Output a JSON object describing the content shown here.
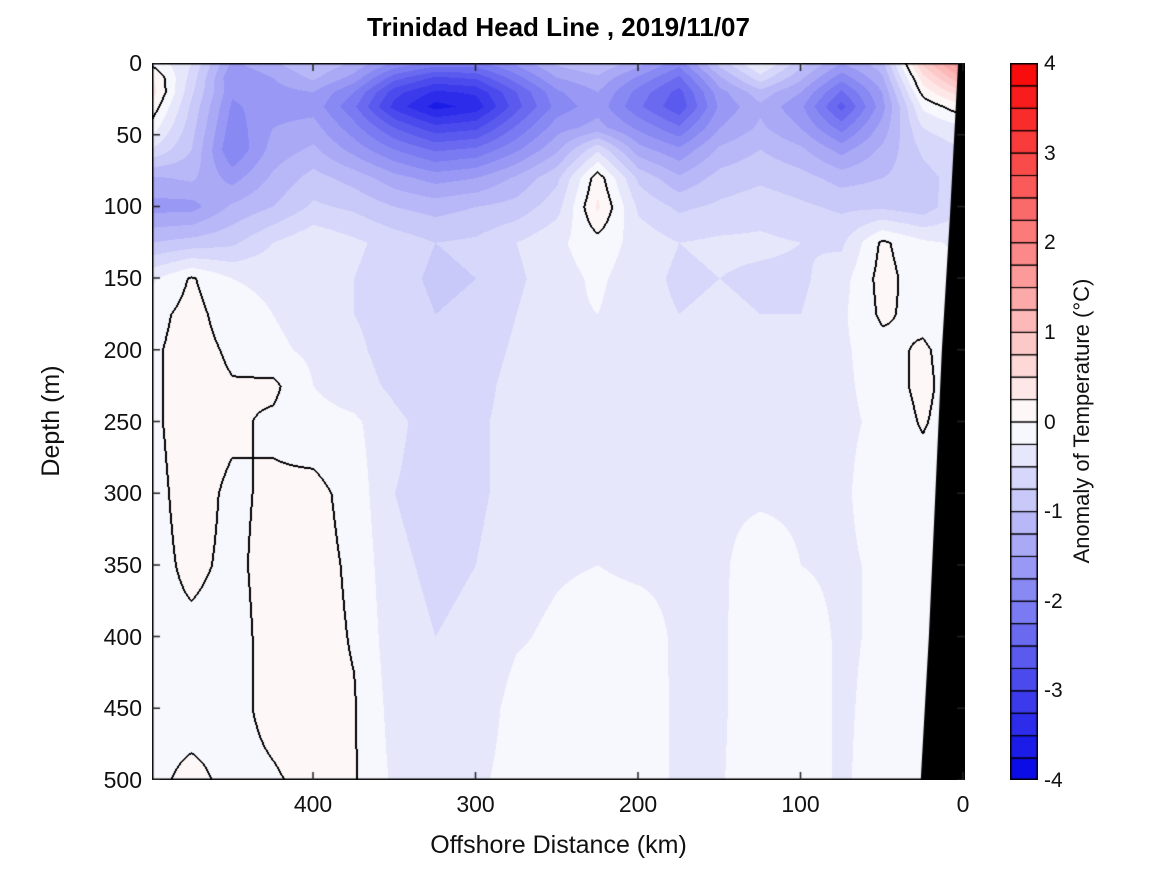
{
  "title": "Trinidad Head Line , 2019/11/07",
  "chart_data": {
    "type": "heatmap",
    "subtype": "filled-contour-section",
    "title": "Trinidad Head Line , 2019/11/07",
    "xlabel": "Offshore Distance (km)",
    "ylabel": "Depth (m)",
    "colorbar_label": "Anomaly of Temperature (°C)",
    "x_axis_reversed": true,
    "x_range_km": [
      0,
      499
    ],
    "y_range_m": [
      0,
      500
    ],
    "x_ticks": [
      400,
      300,
      200,
      100,
      0
    ],
    "y_ticks": [
      0,
      50,
      100,
      150,
      200,
      250,
      300,
      350,
      400,
      450,
      500
    ],
    "colorbar_ticks": [
      4,
      3,
      2,
      1,
      0,
      -1,
      -2,
      -3,
      -4
    ],
    "colorbar_range": [
      -4,
      4
    ],
    "colorbar_segments": 32,
    "contour_interval_degC": 0.25,
    "zero_contour_line_color": "#000000",
    "land_color": "#000000",
    "colormap": {
      "negative_end": "#0d0de8",
      "zero": "#ffffff",
      "positive_end": "#f90702"
    },
    "x_km": [
      500,
      475,
      450,
      425,
      400,
      375,
      350,
      325,
      300,
      275,
      250,
      225,
      200,
      175,
      150,
      125,
      100,
      75,
      50,
      25,
      0
    ],
    "depth_m": [
      0,
      10,
      20,
      30,
      45,
      60,
      80,
      100,
      125,
      150,
      175,
      200,
      225,
      250,
      300,
      350,
      400,
      450,
      500
    ],
    "anomaly_degC": [
      [
        -0.05,
        -0.5,
        -1.55,
        -1.3,
        -1.0,
        -1.3,
        -1.8,
        -2.1,
        -2.1,
        -1.7,
        -1.2,
        -1.0,
        -1.4,
        -1.9,
        -0.9,
        -0.2,
        -0.9,
        -1.5,
        -1.1,
        0.8,
        1.8
      ],
      [
        0.3,
        -0.6,
        -1.75,
        -1.5,
        -1.2,
        -1.6,
        -2.4,
        -2.8,
        -2.7,
        -2.1,
        -1.5,
        -1.3,
        -1.8,
        -2.3,
        -1.3,
        -0.6,
        -1.2,
        -1.9,
        -1.3,
        0.4,
        1.3
      ],
      [
        0.4,
        -0.7,
        -1.7,
        -1.6,
        -1.5,
        -2.0,
        -2.9,
        -3.3,
        -3.2,
        -2.5,
        -1.8,
        -1.5,
        -2.1,
        -2.6,
        -1.6,
        -1.1,
        -1.5,
        -2.3,
        -1.5,
        0.1,
        0.7
      ],
      [
        0.2,
        -0.8,
        -1.8,
        -1.6,
        -1.6,
        -2.2,
        -3.1,
        -3.6,
        -3.4,
        -2.6,
        -1.9,
        -1.6,
        -2.2,
        -2.7,
        -1.7,
        -1.3,
        -1.7,
        -2.6,
        -1.6,
        -0.2,
        0.2
      ],
      [
        -0.1,
        -0.9,
        -1.9,
        -1.5,
        -1.4,
        -1.9,
        -2.5,
        -2.9,
        -2.8,
        -2.2,
        -1.6,
        -1.4,
        -1.8,
        -2.2,
        -1.5,
        -1.2,
        -1.5,
        -2.1,
        -1.4,
        -0.5,
        -0.3
      ],
      [
        -0.5,
        -1.0,
        -2.0,
        -1.4,
        -1.2,
        -1.6,
        -2.0,
        -2.3,
        -2.2,
        -1.8,
        -1.3,
        -0.55,
        -1.4,
        -1.7,
        -1.2,
        -1.0,
        -1.2,
        -1.6,
        -1.2,
        -0.7,
        -0.5
      ],
      [
        -1.3,
        -1.2,
        -1.6,
        -1.2,
        -0.9,
        -1.1,
        -1.4,
        -1.6,
        -1.5,
        -1.2,
        -0.8,
        0.15,
        -0.8,
        -1.2,
        -0.9,
        -0.8,
        -0.9,
        -1.1,
        -1.0,
        -0.85,
        -0.6
      ],
      [
        -1.6,
        -1.6,
        -1.2,
        -1.0,
        -0.7,
        -0.8,
        -1.0,
        -1.1,
        -1.0,
        -0.9,
        -0.6,
        0.3,
        -0.55,
        -0.8,
        -0.7,
        -0.6,
        -0.7,
        -0.8,
        -0.8,
        -0.9,
        -0.5
      ],
      [
        -1.0,
        -0.9,
        -0.8,
        -0.5,
        -0.3,
        -0.45,
        -0.6,
        -0.75,
        -0.7,
        -0.5,
        -0.3,
        -0.1,
        -0.35,
        -0.5,
        -0.45,
        -0.45,
        -0.5,
        -0.55,
        0.05,
        -0.2,
        -0.3
      ],
      [
        -0.3,
        0.03,
        -0.25,
        -0.3,
        -0.35,
        -0.5,
        -0.65,
        -0.8,
        -0.75,
        -0.55,
        -0.35,
        -0.2,
        -0.4,
        -0.55,
        -0.5,
        -0.55,
        -0.55,
        -0.35,
        0.1,
        -0.15,
        -0.2
      ],
      [
        -0.1,
        0.1,
        -0.15,
        -0.25,
        -0.35,
        -0.5,
        -0.6,
        -0.75,
        -0.7,
        -0.5,
        -0.3,
        -0.25,
        -0.4,
        -0.5,
        -0.45,
        -0.5,
        -0.5,
        -0.3,
        0.05,
        -0.1,
        -0.25
      ],
      [
        -0.05,
        0.12,
        -0.05,
        -0.2,
        -0.3,
        -0.45,
        -0.6,
        -0.7,
        -0.65,
        -0.45,
        -0.3,
        -0.3,
        -0.4,
        -0.45,
        -0.4,
        -0.35,
        -0.45,
        -0.3,
        -0.1,
        0.05,
        -0.2
      ],
      [
        -0.05,
        0.12,
        0.02,
        0.06,
        -0.25,
        -0.4,
        -0.55,
        -0.65,
        -0.6,
        -0.4,
        -0.3,
        -0.3,
        -0.35,
        -0.4,
        -0.35,
        -0.3,
        -0.4,
        -0.3,
        -0.15,
        0.08,
        -0.2
      ],
      [
        -0.05,
        0.12,
        0.05,
        -0.05,
        -0.15,
        -0.2,
        -0.45,
        -0.6,
        -0.55,
        -0.4,
        -0.3,
        -0.3,
        -0.35,
        -0.4,
        -0.3,
        -0.3,
        -0.35,
        -0.3,
        -0.2,
        0.03,
        -0.2
      ],
      [
        -0.08,
        0.1,
        -0.05,
        0.05,
        0.08,
        -0.1,
        -0.5,
        -0.6,
        -0.55,
        -0.4,
        -0.3,
        -0.3,
        -0.3,
        -0.35,
        -0.3,
        -0.3,
        -0.3,
        -0.3,
        -0.1,
        -0.15,
        -0.3
      ],
      [
        -0.08,
        0.05,
        -0.05,
        0.08,
        0.1,
        -0.05,
        -0.45,
        -0.55,
        -0.5,
        -0.35,
        -0.28,
        -0.25,
        -0.3,
        -0.3,
        -0.3,
        -0.1,
        -0.25,
        -0.3,
        -0.2,
        -0.1,
        -0.3
      ],
      [
        -0.05,
        -0.05,
        -0.08,
        0.08,
        0.1,
        -0.02,
        -0.4,
        -0.5,
        -0.45,
        -0.28,
        -0.2,
        -0.12,
        -0.12,
        -0.3,
        -0.3,
        -0.05,
        -0.1,
        -0.3,
        -0.2,
        -0.05,
        -0.2
      ],
      [
        -0.05,
        -0.08,
        -0.05,
        0.05,
        0.08,
        0.02,
        -0.35,
        -0.45,
        -0.4,
        -0.15,
        -0.15,
        -0.1,
        -0.1,
        -0.3,
        -0.3,
        -0.05,
        -0.08,
        -0.3,
        -0.15,
        -0.05,
        -0.15
      ],
      [
        -0.05,
        0.05,
        -0.05,
        -0.02,
        0.05,
        0.02,
        -0.3,
        -0.4,
        -0.3,
        -0.15,
        -0.12,
        -0.1,
        -0.1,
        -0.3,
        -0.28,
        -0.05,
        -0.1,
        -0.3,
        -0.1,
        -0.05,
        -0.1
      ]
    ],
    "land_polygon_km_m": [
      [
        3,
        0
      ],
      [
        -2,
        0
      ],
      [
        -2,
        500
      ],
      [
        26,
        500
      ],
      [
        21,
        400
      ],
      [
        17,
        300
      ],
      [
        13,
        200
      ],
      [
        8,
        106
      ]
    ]
  }
}
